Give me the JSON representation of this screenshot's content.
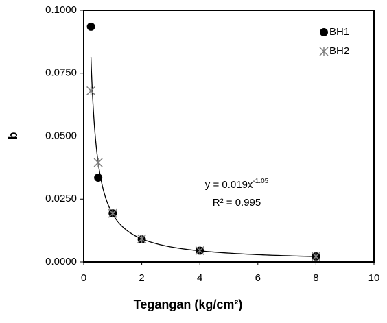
{
  "chart_data": {
    "type": "scatter",
    "x_label": "Tegangan (kg/cm²)",
    "y_label": "b",
    "xlim": [
      0,
      10
    ],
    "xticks": [
      0,
      2,
      4,
      6,
      8,
      10
    ],
    "ylim": [
      0,
      0.1
    ],
    "yticks": [
      {
        "value": 0,
        "label": "0.0000"
      },
      {
        "value": 0.025,
        "label": "0.0250"
      },
      {
        "value": 0.05,
        "label": "0.0500"
      },
      {
        "value": 0.075,
        "label": "0.0750"
      },
      {
        "value": 0.1,
        "label": "0.1000"
      }
    ],
    "legend": "top-right",
    "series": [
      {
        "name": "BH1",
        "color": "#000000",
        "marker": "circle",
        "x": [
          0.25,
          0.5,
          1,
          2,
          4,
          8
        ],
        "values": [
          0.0935,
          0.0335,
          0.0193,
          0.009,
          0.0045,
          0.0022
        ]
      },
      {
        "name": "BH2",
        "color": "#808080",
        "marker": "star",
        "x": [
          0.25,
          0.5,
          1,
          2,
          4,
          8
        ],
        "values": [
          0.068,
          0.0395,
          0.0193,
          0.0092,
          0.0045,
          0.0022
        ]
      }
    ],
    "trendline": {
      "a": 0.019,
      "exponent": -1.05,
      "color": "#000000"
    },
    "equation": "y = 0.019x",
    "equation_exponent": "-1.05",
    "r_squared": "R² = 0.995"
  }
}
